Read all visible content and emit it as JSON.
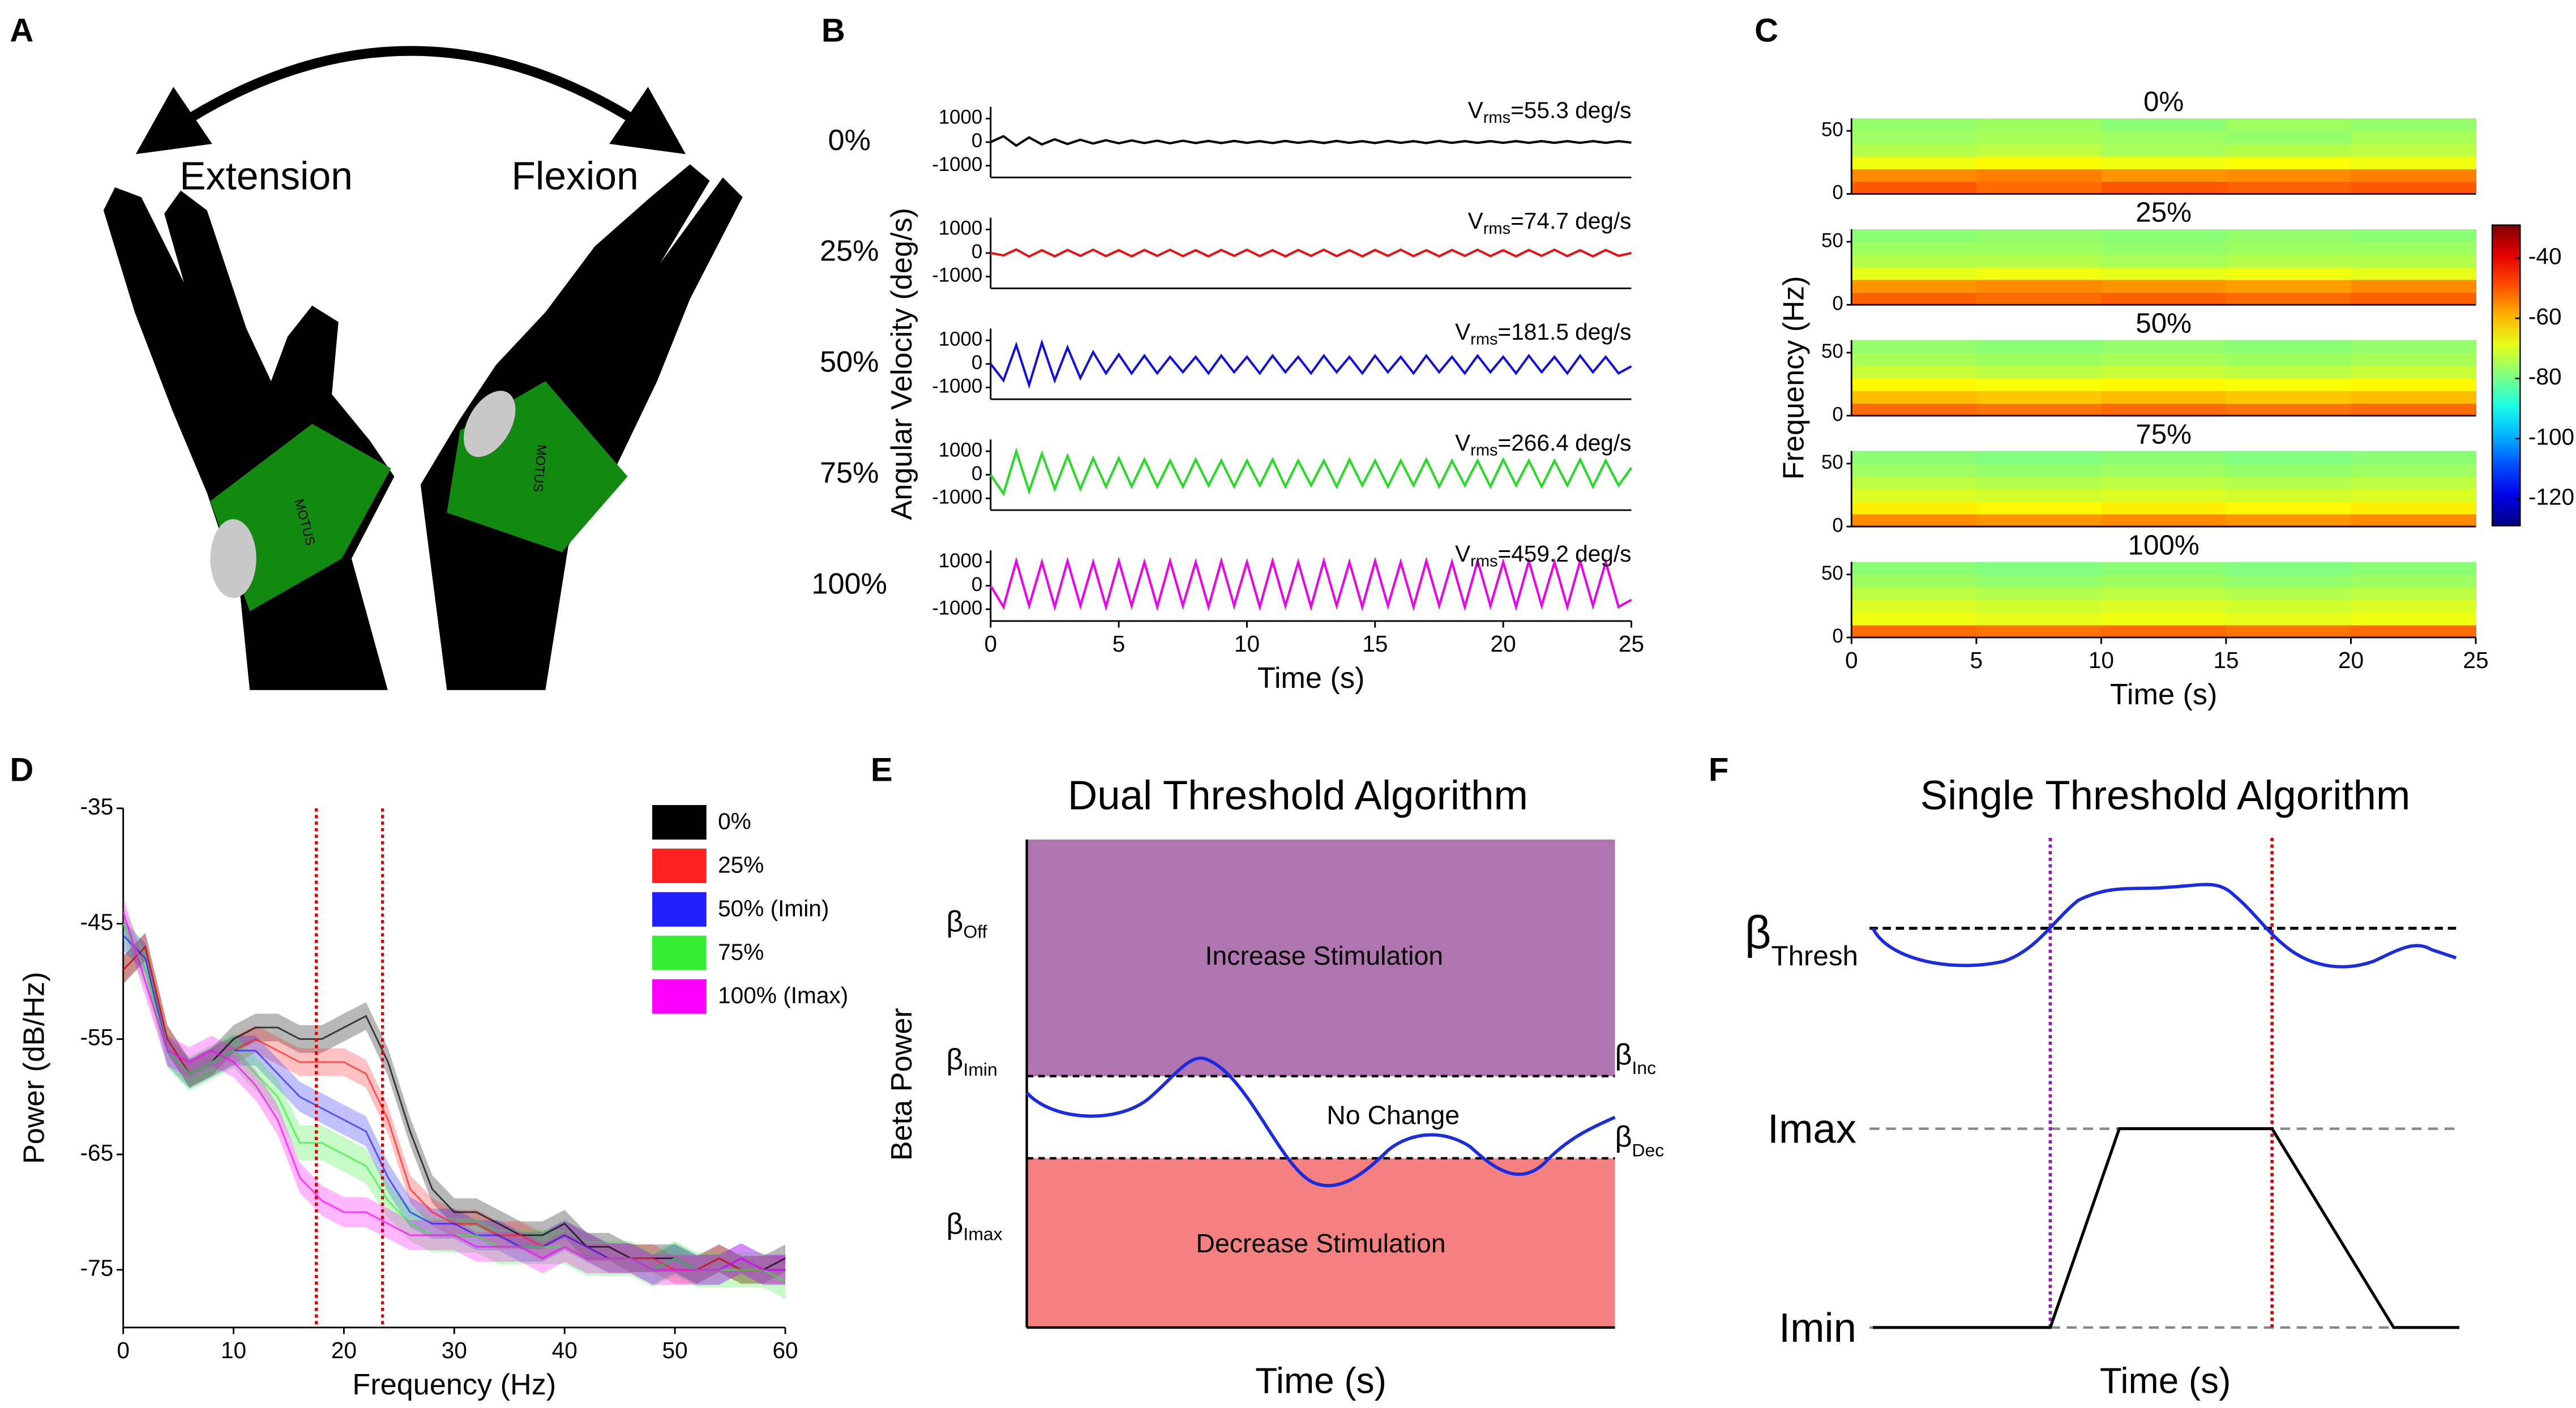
{
  "panel_a": {
    "letter": "A",
    "labels": [
      "Extension",
      "Flexion"
    ],
    "band_text": [
      "MOTUS",
      "MOTUS"
    ]
  },
  "chart_data": [
    {
      "type": "line",
      "letter": "B",
      "x_label": "Time (s)",
      "y_label": "Angular Velocity (deg/s)",
      "xlim": [
        0,
        25
      ],
      "xticks": [
        0,
        5,
        10,
        15,
        20,
        25
      ],
      "ylim": [
        -1500,
        1500
      ],
      "yticks": [
        1000,
        0,
        -1000
      ],
      "x": [
        0,
        0.5,
        1,
        1.5,
        2,
        2.5,
        3,
        3.5,
        4,
        4.5,
        5,
        5.5,
        6,
        6.5,
        7,
        7.5,
        8,
        8.5,
        9,
        9.5,
        10,
        10.5,
        11,
        11.5,
        12,
        12.5,
        13,
        13.5,
        14,
        14.5,
        15,
        15.5,
        16,
        16.5,
        17,
        17.5,
        18,
        18.5,
        19,
        19.5,
        20,
        20.5,
        21,
        21.5,
        22,
        22.5,
        23,
        23.5,
        24,
        24.5,
        25
      ],
      "series": [
        {
          "name": "0%",
          "color": "#000000",
          "annotation": "V",
          "annotation_sub": "rms",
          "annotation_rest": "=55.3 deg/s",
          "values": [
            0,
            250,
            -150,
            200,
            -100,
            120,
            -80,
            100,
            -60,
            80,
            -50,
            70,
            -40,
            60,
            -50,
            60,
            -40,
            50,
            -40,
            50,
            -30,
            40,
            -40,
            50,
            -30,
            40,
            -40,
            50,
            -30,
            40,
            -40,
            50,
            -30,
            40,
            -40,
            50,
            -30,
            40,
            -30,
            40,
            -30,
            40,
            -30,
            40,
            -30,
            40,
            -30,
            40,
            -30,
            40,
            -20
          ]
        },
        {
          "name": "25%",
          "color": "#e81010",
          "annotation": "V",
          "annotation_sub": "rms",
          "annotation_rest": "=74.7 deg/s",
          "values": [
            0,
            -100,
            150,
            -150,
            120,
            -140,
            130,
            -120,
            140,
            -130,
            120,
            -140,
            130,
            -120,
            140,
            -130,
            120,
            -140,
            130,
            -120,
            140,
            -130,
            120,
            -140,
            130,
            -120,
            140,
            -130,
            120,
            -140,
            130,
            -120,
            140,
            -130,
            120,
            -140,
            130,
            -120,
            140,
            -130,
            120,
            -140,
            130,
            -120,
            140,
            -130,
            120,
            -140,
            130,
            -120,
            0
          ]
        },
        {
          "name": "50%",
          "color": "#1010e0",
          "annotation": "V",
          "annotation_sub": "rms",
          "annotation_rest": "=181.5 deg/s",
          "values": [
            0,
            -700,
            800,
            -900,
            900,
            -700,
            700,
            -600,
            500,
            -400,
            400,
            -400,
            350,
            -400,
            300,
            -350,
            300,
            -400,
            350,
            -350,
            300,
            -400,
            350,
            -350,
            300,
            -400,
            350,
            -350,
            300,
            -400,
            350,
            -350,
            300,
            -400,
            350,
            -350,
            300,
            -400,
            350,
            -350,
            300,
            -400,
            350,
            -350,
            300,
            -400,
            350,
            -350,
            300,
            -400,
            -100
          ]
        },
        {
          "name": "75%",
          "color": "#22dd22",
          "annotation": "V",
          "annotation_sub": "rms",
          "annotation_rest": "=266.4 deg/s",
          "values": [
            0,
            -800,
            1000,
            -700,
            900,
            -600,
            800,
            -600,
            700,
            -500,
            700,
            -500,
            650,
            -500,
            600,
            -500,
            650,
            -450,
            600,
            -500,
            600,
            -450,
            650,
            -500,
            600,
            -450,
            600,
            -500,
            650,
            -450,
            600,
            -500,
            600,
            -450,
            650,
            -500,
            600,
            -450,
            600,
            -500,
            650,
            -450,
            600,
            -500,
            600,
            -450,
            650,
            -500,
            600,
            -450,
            300
          ]
        },
        {
          "name": "100%",
          "color": "#ee00ee",
          "annotation": "V",
          "annotation_sub": "rms",
          "annotation_rest": "=459.2 deg/s",
          "values": [
            0,
            -900,
            1050,
            -850,
            1000,
            -900,
            1050,
            -850,
            1000,
            -900,
            1050,
            -850,
            1000,
            -900,
            1050,
            -850,
            1000,
            -900,
            1050,
            -850,
            1000,
            -900,
            1050,
            -850,
            1000,
            -900,
            1050,
            -850,
            1000,
            -900,
            1050,
            -850,
            1000,
            -900,
            1050,
            -850,
            1000,
            -900,
            1050,
            -850,
            1000,
            -900,
            1050,
            -850,
            1000,
            -900,
            1050,
            -850,
            1000,
            -900,
            -600
          ]
        }
      ]
    },
    {
      "type": "heatmap",
      "letter": "C",
      "x_label": "Time (s)",
      "y_label": "Frequency (Hz)",
      "xlim": [
        0,
        25
      ],
      "xticks": [
        0,
        5,
        10,
        15,
        20,
        25
      ],
      "ylim": [
        0,
        60
      ],
      "yticks": [
        0,
        50
      ],
      "x_bins": [
        0,
        5,
        10,
        15,
        20,
        25
      ],
      "y_bins": [
        0,
        10,
        20,
        30,
        40,
        50,
        60
      ],
      "colormap": "jet",
      "colorbar": {
        "lim": [
          -129,
          -29
        ],
        "ticks": [
          -40,
          -60,
          -80,
          -100,
          -120
        ]
      },
      "series": [
        {
          "name": "0%",
          "color": "#000000",
          "values": [
            [
              -50,
              -52,
              -50,
              -51,
              -50
            ],
            [
              -55,
              -54,
              -56,
              -55,
              -54
            ],
            [
              -68,
              -66,
              -68,
              -67,
              -68
            ],
            [
              -74,
              -73,
              -75,
              -74,
              -73
            ],
            [
              -76,
              -75,
              -76,
              -77,
              -75
            ],
            [
              -77,
              -76,
              -78,
              -76,
              -77
            ]
          ]
        },
        {
          "name": "25%",
          "color": "#e81010",
          "values": [
            [
              -51,
              -52,
              -51,
              -52,
              -51
            ],
            [
              -56,
              -55,
              -56,
              -57,
              -55
            ],
            [
              -69,
              -68,
              -69,
              -68,
              -69
            ],
            [
              -74,
              -74,
              -75,
              -74,
              -74
            ],
            [
              -76,
              -76,
              -77,
              -76,
              -76
            ],
            [
              -78,
              -77,
              -78,
              -77,
              -78
            ]
          ]
        },
        {
          "name": "50%",
          "color": "#1010e0",
          "values": [
            [
              -52,
              -53,
              -52,
              -53,
              -52
            ],
            [
              -60,
              -61,
              -60,
              -61,
              -60
            ],
            [
              -66,
              -67,
              -66,
              -67,
              -66
            ],
            [
              -72,
              -73,
              -72,
              -73,
              -72
            ],
            [
              -75,
              -76,
              -75,
              -76,
              -75
            ],
            [
              -77,
              -78,
              -77,
              -78,
              -77
            ]
          ]
        },
        {
          "name": "75%",
          "color": "#22dd22",
          "values": [
            [
              -55,
              -56,
              -55,
              -56,
              -55
            ],
            [
              -65,
              -66,
              -65,
              -66,
              -65
            ],
            [
              -70,
              -71,
              -70,
              -71,
              -70
            ],
            [
              -73,
              -74,
              -73,
              -74,
              -73
            ],
            [
              -76,
              -77,
              -76,
              -77,
              -76
            ],
            [
              -78,
              -79,
              -78,
              -79,
              -78
            ]
          ]
        },
        {
          "name": "100%",
          "color": "#ee00ee",
          "values": [
            [
              -52,
              -53,
              -52,
              -53,
              -52
            ],
            [
              -68,
              -69,
              -68,
              -69,
              -68
            ],
            [
              -70,
              -71,
              -70,
              -71,
              -70
            ],
            [
              -73,
              -74,
              -73,
              -74,
              -73
            ],
            [
              -76,
              -77,
              -76,
              -77,
              -76
            ],
            [
              -78,
              -79,
              -78,
              -79,
              -78
            ]
          ]
        }
      ]
    },
    {
      "type": "line",
      "letter": "D",
      "x_label": "Frequency (Hz)",
      "y_label": "Power (dB/Hz)",
      "xlim": [
        0,
        60
      ],
      "xticks": [
        0,
        10,
        20,
        30,
        40,
        50,
        60
      ],
      "ylim": [
        -80,
        -35
      ],
      "yticks": [
        -35,
        -45,
        -55,
        -65,
        -75
      ],
      "vlines": [
        17.5,
        23.5
      ],
      "vline_color": "#e00000",
      "legend": "upper right",
      "x": [
        0,
        2,
        4,
        6,
        8,
        10,
        12,
        14,
        16,
        18,
        20,
        22,
        24,
        26,
        28,
        30,
        32,
        34,
        36,
        38,
        40,
        42,
        44,
        46,
        48,
        50,
        52,
        54,
        56,
        58,
        60
      ],
      "series": [
        {
          "name": "0%",
          "color": "#000000",
          "error": 1.2,
          "values": [
            -49,
            -47,
            -55,
            -58,
            -57,
            -55,
            -54,
            -54,
            -55,
            -55,
            -54,
            -53,
            -57,
            -63,
            -68,
            -70,
            -70,
            -71,
            -72,
            -72,
            -71,
            -73,
            -73,
            -74,
            -74,
            -74,
            -75,
            -74,
            -75,
            -75,
            -74
          ]
        },
        {
          "name": "25%",
          "color": "#ff2020",
          "error": 1.2,
          "values": [
            -49,
            -47,
            -55,
            -58,
            -57,
            -56,
            -55,
            -56,
            -57,
            -57,
            -57,
            -58,
            -62,
            -68,
            -70,
            -71,
            -71,
            -72,
            -72,
            -73,
            -72,
            -73,
            -74,
            -74,
            -74,
            -75,
            -75,
            -74,
            -75,
            -75,
            -75
          ]
        },
        {
          "name": "50% (Imin)",
          "color": "#2020ff",
          "error": 1.3,
          "values": [
            -46,
            -48,
            -56,
            -58,
            -57,
            -56,
            -56,
            -58,
            -60,
            -61,
            -62,
            -63,
            -67,
            -70,
            -71,
            -71,
            -72,
            -72,
            -73,
            -73,
            -72,
            -73,
            -74,
            -74,
            -75,
            -74,
            -75,
            -75,
            -74,
            -75,
            -75
          ]
        },
        {
          "name": "75%",
          "color": "#33ee33",
          "error": 1.5,
          "values": [
            -45,
            -49,
            -56,
            -58,
            -57,
            -56,
            -58,
            -60,
            -64,
            -64,
            -65,
            -66,
            -69,
            -71,
            -72,
            -72,
            -72,
            -73,
            -73,
            -73,
            -73,
            -74,
            -74,
            -74,
            -75,
            -74,
            -75,
            -75,
            -75,
            -75,
            -76
          ]
        },
        {
          "name": "100% (Imax)",
          "color": "#ff00ff",
          "error": 1.3,
          "values": [
            -44,
            -50,
            -56,
            -57,
            -56,
            -57,
            -59,
            -62,
            -67,
            -69,
            -70,
            -70,
            -71,
            -72,
            -72,
            -72,
            -73,
            -73,
            -73,
            -74,
            -73,
            -74,
            -74,
            -74,
            -75,
            -75,
            -75,
            -75,
            -74,
            -75,
            -75
          ]
        }
      ]
    }
  ],
  "panel_e": {
    "letter": "E",
    "title": "Dual Threshold Algorithm",
    "regions": [
      "Increase Stimulation",
      "No Change",
      "Decrease Stimulation"
    ],
    "left_labels": [
      {
        "symbol": "β",
        "sub": "Off"
      },
      {
        "symbol": "β",
        "sub": "Imin"
      },
      {
        "symbol": "β",
        "sub": "Imax"
      }
    ],
    "right_labels": [
      {
        "symbol": "β",
        "sub": "Inc"
      },
      {
        "symbol": "β",
        "sub": "Dec"
      }
    ],
    "y_label": "Beta Power",
    "x_label": "Time (s)"
  },
  "panel_f": {
    "letter": "F",
    "title": "Single Threshold Algorithm",
    "threshold": {
      "symbol": "β",
      "sub": "Thresh"
    },
    "levels": [
      "Imax",
      "Imin"
    ],
    "x_label": "Time (s)"
  }
}
